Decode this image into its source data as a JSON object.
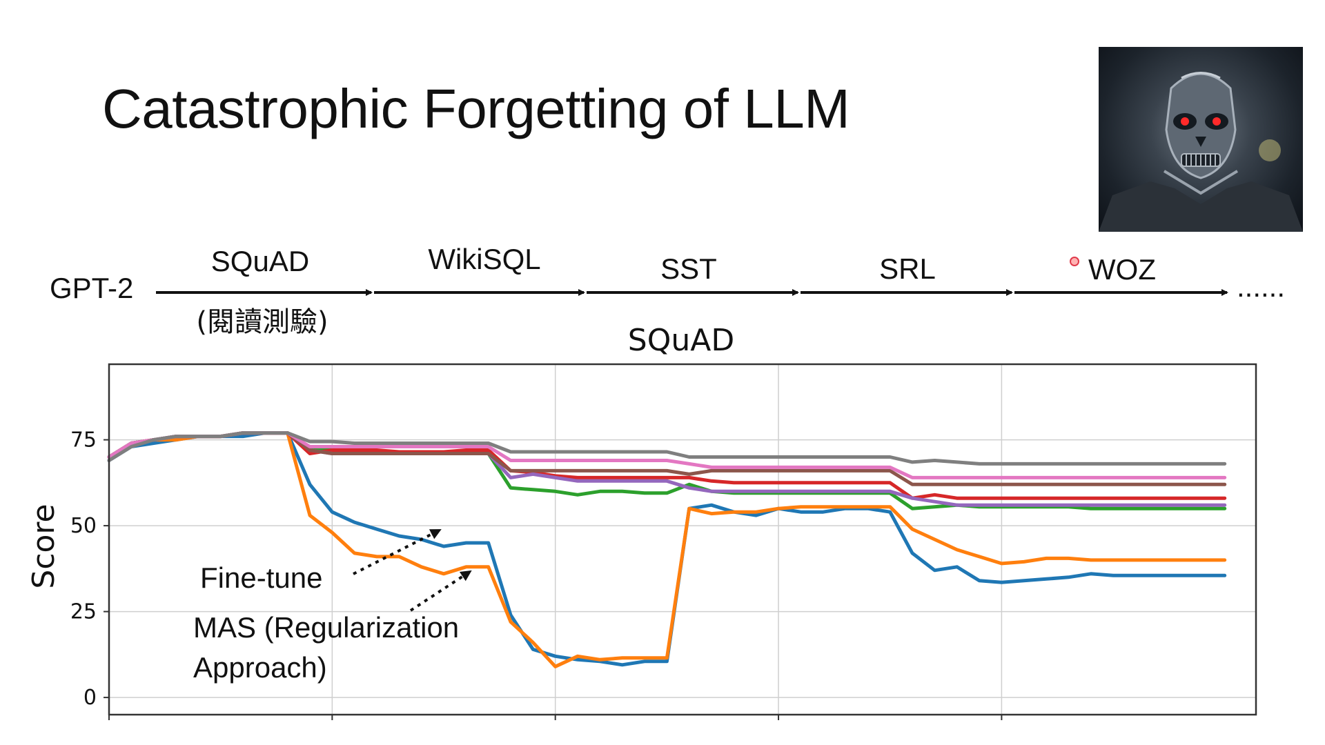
{
  "slide": {
    "title": "Catastrophic Forgetting of LLM"
  },
  "pipeline": {
    "model": "GPT-2",
    "stages": [
      {
        "label": "SQuAD",
        "sub": "(閱讀測驗)"
      },
      {
        "label": "WikiSQL"
      },
      {
        "label": "SST"
      },
      {
        "label": "SRL"
      },
      {
        "label": "WOZ"
      }
    ],
    "ellipsis": "......"
  },
  "annotations": {
    "finetune": "Fine-tune",
    "mas_line1": "MAS (Regularization",
    "mas_line2": "Approach)"
  },
  "photo": {
    "icon": "terminator-robot-icon"
  },
  "chart_data": {
    "type": "line",
    "title": "SQuAD",
    "ylabel": "Score",
    "xlabel": "",
    "xlim": [
      0,
      25.7
    ],
    "ylim": [
      -5,
      97
    ],
    "yticks": [
      0,
      25,
      50,
      75
    ],
    "grid": true,
    "x": [
      0,
      0.5,
      1,
      1.5,
      2,
      2.5,
      3,
      3.5,
      4,
      4.5,
      5,
      5.5,
      6,
      6.5,
      7,
      7.5,
      8,
      8.5,
      9,
      9.5,
      10,
      10.5,
      11,
      11.5,
      12,
      12.5,
      13,
      13.5,
      14,
      14.5,
      15,
      15.5,
      16,
      16.5,
      17,
      17.5,
      18,
      18.5,
      19,
      19.5,
      20,
      20.5,
      21,
      21.5,
      22,
      22.5,
      23,
      23.5,
      24,
      24.5,
      25
    ],
    "series": [
      {
        "color": "#1f77b4",
        "values": [
          69,
          73,
          74,
          75,
          76,
          76,
          76,
          77,
          77,
          62,
          54,
          51,
          49,
          47,
          46,
          44,
          45,
          45,
          24,
          14,
          12,
          11,
          10.5,
          9.5,
          10.5,
          10.5,
          55,
          56,
          54,
          53,
          55,
          54,
          54,
          55,
          55,
          54,
          42,
          37,
          38,
          34,
          33.5,
          34,
          34.5,
          35,
          36,
          35.5,
          35.5,
          35.5,
          35.5,
          35.5,
          35.5
        ]
      },
      {
        "color": "#ff7f0e",
        "values": [
          70,
          74,
          75,
          75,
          76,
          76,
          77,
          77,
          77,
          53,
          48,
          42,
          41,
          41,
          38,
          36,
          38,
          38,
          22,
          16,
          9,
          12,
          11,
          11.5,
          11.5,
          11.5,
          55,
          53.5,
          54,
          54,
          55,
          55.5,
          55.5,
          55.5,
          55.5,
          55.5,
          49,
          46,
          43,
          41,
          39,
          39.5,
          40.5,
          40.5,
          40,
          40,
          40,
          40,
          40,
          40,
          40
        ]
      },
      {
        "color": "#2ca02c",
        "values": [
          70,
          74,
          75,
          76,
          76,
          76,
          77,
          77,
          77,
          72,
          72,
          71,
          71,
          71,
          71,
          71,
          71,
          71,
          61,
          60.5,
          60,
          59,
          60,
          60,
          59.5,
          59.5,
          62,
          60,
          59.5,
          59.5,
          59.5,
          59.5,
          59.5,
          59.5,
          59.5,
          59.5,
          55,
          55.5,
          56,
          55.5,
          55.5,
          55.5,
          55.5,
          55.5,
          55,
          55,
          55,
          55,
          55,
          55,
          55
        ]
      },
      {
        "color": "#d62728",
        "values": [
          70,
          74,
          75,
          76,
          76,
          76,
          77,
          77,
          77,
          71,
          72,
          72,
          72,
          71.5,
          71.5,
          71.5,
          72,
          72,
          66,
          65.5,
          64.5,
          64,
          64,
          64,
          64,
          64,
          64,
          63,
          62.5,
          62.5,
          62.5,
          62.5,
          62.5,
          62.5,
          62.5,
          62.5,
          58,
          59,
          58,
          58,
          58,
          58,
          58,
          58,
          58,
          58,
          58,
          58,
          58,
          58,
          58
        ]
      },
      {
        "color": "#9467bd",
        "values": [
          70,
          74,
          75,
          76,
          76,
          76,
          77,
          77,
          77,
          72,
          71,
          71,
          71,
          71,
          71,
          71,
          71,
          71,
          64,
          65,
          64,
          63,
          63,
          63,
          63,
          63,
          61,
          60,
          60,
          60,
          60,
          60,
          60,
          60,
          60,
          60,
          58,
          57,
          56,
          56,
          56,
          56,
          56,
          56,
          56,
          56,
          56,
          56,
          56,
          56,
          56
        ]
      },
      {
        "color": "#8c564b",
        "values": [
          70,
          74,
          75,
          76,
          76,
          76,
          77,
          77,
          77,
          72,
          71,
          71,
          71,
          71,
          71,
          71,
          71,
          71,
          66,
          66,
          66,
          66,
          66,
          66,
          66,
          66,
          65,
          66,
          66,
          66,
          66,
          66,
          66,
          66,
          66,
          66,
          62,
          62,
          62,
          62,
          62,
          62,
          62,
          62,
          62,
          62,
          62,
          62,
          62,
          62,
          62
        ]
      },
      {
        "color": "#e377c2",
        "values": [
          70,
          74,
          75,
          76,
          76,
          76,
          77,
          77,
          77,
          73,
          73,
          73,
          73,
          73,
          73,
          73,
          73,
          73,
          69,
          69,
          69,
          69,
          69,
          69,
          69,
          69,
          68,
          67,
          67,
          67,
          67,
          67,
          67,
          67,
          67,
          67,
          64,
          64,
          64,
          64,
          64,
          64,
          64,
          64,
          64,
          64,
          64,
          64,
          64,
          64,
          64
        ]
      },
      {
        "color": "#7f7f7f",
        "values": [
          69,
          73,
          75,
          76,
          76,
          76,
          77,
          77,
          77,
          74.5,
          74.5,
          74,
          74,
          74,
          74,
          74,
          74,
          74,
          71.5,
          71.5,
          71.5,
          71.5,
          71.5,
          71.5,
          71.5,
          71.5,
          70,
          70,
          70,
          70,
          70,
          70,
          70,
          70,
          70,
          70,
          68.5,
          69,
          68.5,
          68,
          68,
          68,
          68,
          68,
          68,
          68,
          68,
          68,
          68,
          68,
          68
        ]
      }
    ]
  }
}
